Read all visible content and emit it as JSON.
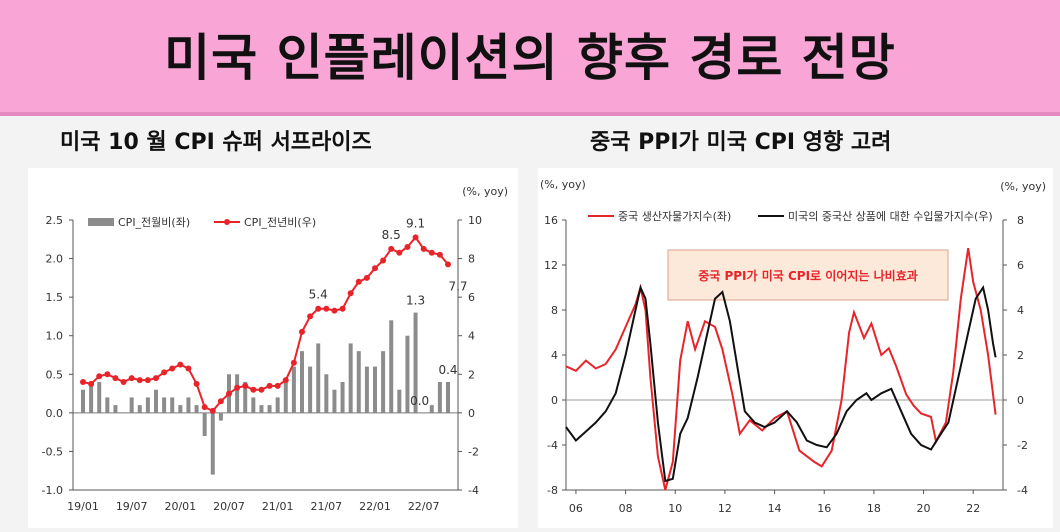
{
  "page": {
    "title": "미국 인플레이션의 향후 경로 전망"
  },
  "left_panel": {
    "title": "미국 10 월 CPI 슈퍼 서프라이즈"
  },
  "right_panel": {
    "title": "중국 PPI가  미국 CPI 영향 고려"
  },
  "chart_data": [
    {
      "type": "bar+line",
      "unit_right": "(%, yoy)",
      "y_left": {
        "lim": [
          -1.0,
          2.5
        ],
        "ticks": [
          "2.5",
          "2.0",
          "1.5",
          "1.0",
          "0.5",
          "0.0",
          "-0.5",
          "-1.0"
        ]
      },
      "y_right": {
        "lim": [
          -4,
          10
        ],
        "ticks": [
          "10",
          "8",
          "6",
          "4",
          "2",
          "0",
          "-2",
          "-4"
        ]
      },
      "x_ticks": [
        "19/01",
        "19/07",
        "20/01",
        "20/07",
        "21/01",
        "21/07",
        "22/01",
        "22/07"
      ],
      "legend": {
        "bar": "CPI_전월비(좌)",
        "line": "CPI_전년비(우)"
      },
      "bar_series": {
        "name": "CPI_전월비(좌)",
        "values": [
          0.3,
          0.4,
          0.4,
          0.2,
          0.1,
          0.0,
          0.2,
          0.1,
          0.2,
          0.3,
          0.2,
          0.2,
          0.1,
          0.2,
          0.1,
          -0.3,
          -0.8,
          -0.1,
          0.5,
          0.5,
          0.4,
          0.2,
          0.1,
          0.1,
          0.2,
          0.4,
          0.6,
          0.8,
          0.6,
          0.9,
          0.5,
          0.3,
          0.4,
          0.9,
          0.8,
          0.6,
          0.6,
          0.8,
          1.2,
          0.3,
          1.0,
          1.3,
          0.0,
          0.1,
          0.4,
          0.4
        ]
      },
      "line_series": {
        "name": "CPI_전년비(우)",
        "values": [
          1.6,
          1.5,
          1.9,
          2.0,
          1.8,
          1.6,
          1.8,
          1.7,
          1.7,
          1.8,
          2.1,
          2.3,
          2.5,
          2.3,
          1.5,
          0.3,
          0.1,
          0.6,
          1.0,
          1.3,
          1.4,
          1.2,
          1.2,
          1.4,
          1.4,
          1.7,
          2.6,
          4.2,
          5.0,
          5.4,
          5.4,
          5.3,
          5.4,
          6.2,
          6.8,
          7.0,
          7.5,
          7.9,
          8.5,
          8.3,
          8.6,
          9.1,
          8.5,
          8.3,
          8.2,
          7.7
        ]
      },
      "annotations": [
        {
          "label": "5.4",
          "series": "line",
          "index": 29
        },
        {
          "label": "8.5",
          "series": "line",
          "index": 38
        },
        {
          "label": "9.1",
          "series": "line",
          "index": 41
        },
        {
          "label": "7.7",
          "series": "line",
          "index": 45
        },
        {
          "label": "1.3",
          "series": "bar",
          "index": 41
        },
        {
          "label": "0.0",
          "series": "bar",
          "index": 42
        },
        {
          "label": "0.4",
          "series": "bar",
          "index": 45
        }
      ]
    },
    {
      "type": "line",
      "unit_left": "(%, yoy)",
      "unit_right": "(%, yoy)",
      "y_left": {
        "lim": [
          -8,
          16
        ],
        "ticks": [
          "16",
          "12",
          "8",
          "4",
          "0",
          "-4",
          "-8"
        ]
      },
      "y_right": {
        "lim": [
          -4,
          8
        ],
        "ticks": [
          "8",
          "6",
          "4",
          "2",
          "0",
          "-2",
          "-4"
        ]
      },
      "x_ticks": [
        "06",
        "08",
        "10",
        "12",
        "14",
        "16",
        "18",
        "20",
        "22"
      ],
      "x_range": [
        2005.6,
        2023.2
      ],
      "callout": "중국 PPI가 미국 CPI로 이어지는 나비효과",
      "series": [
        {
          "name": "중국 생산자물가지수(좌)",
          "color": "#e8242b",
          "axis": "left",
          "points": [
            [
              2005.6,
              3.0
            ],
            [
              2006.0,
              2.6
            ],
            [
              2006.4,
              3.5
            ],
            [
              2006.8,
              2.8
            ],
            [
              2007.2,
              3.2
            ],
            [
              2007.6,
              4.5
            ],
            [
              2008.0,
              6.5
            ],
            [
              2008.4,
              8.5
            ],
            [
              2008.6,
              10.0
            ],
            [
              2008.8,
              8.0
            ],
            [
              2009.0,
              2.0
            ],
            [
              2009.3,
              -5.0
            ],
            [
              2009.6,
              -8.0
            ],
            [
              2009.9,
              -5.5
            ],
            [
              2010.2,
              3.5
            ],
            [
              2010.5,
              7.0
            ],
            [
              2010.8,
              4.5
            ],
            [
              2011.2,
              7.0
            ],
            [
              2011.6,
              6.5
            ],
            [
              2011.9,
              4.5
            ],
            [
              2012.3,
              0.5
            ],
            [
              2012.6,
              -3.0
            ],
            [
              2013.0,
              -1.8
            ],
            [
              2013.5,
              -2.7
            ],
            [
              2014.0,
              -1.6
            ],
            [
              2014.5,
              -1.0
            ],
            [
              2015.0,
              -4.5
            ],
            [
              2015.6,
              -5.5
            ],
            [
              2015.9,
              -5.9
            ],
            [
              2016.3,
              -4.5
            ],
            [
              2016.7,
              0.0
            ],
            [
              2017.0,
              6.0
            ],
            [
              2017.2,
              7.8
            ],
            [
              2017.6,
              5.5
            ],
            [
              2017.9,
              6.8
            ],
            [
              2018.3,
              4.0
            ],
            [
              2018.6,
              4.6
            ],
            [
              2018.9,
              3.0
            ],
            [
              2019.3,
              0.5
            ],
            [
              2019.6,
              -0.5
            ],
            [
              2019.9,
              -1.2
            ],
            [
              2020.3,
              -1.5
            ],
            [
              2020.5,
              -3.7
            ],
            [
              2020.9,
              -2.0
            ],
            [
              2021.2,
              2.5
            ],
            [
              2021.5,
              9.0
            ],
            [
              2021.8,
              13.5
            ],
            [
              2022.0,
              10.5
            ],
            [
              2022.3,
              8.0
            ],
            [
              2022.6,
              4.0
            ],
            [
              2022.9,
              -1.3
            ]
          ]
        },
        {
          "name": "미국의 중국산 상품에 대한 수입물가지수(우)",
          "color": "#111111",
          "axis": "right",
          "points": [
            [
              2005.6,
              -1.2
            ],
            [
              2006.0,
              -1.8
            ],
            [
              2006.4,
              -1.4
            ],
            [
              2006.8,
              -1.0
            ],
            [
              2007.2,
              -0.5
            ],
            [
              2007.6,
              0.3
            ],
            [
              2008.0,
              2.0
            ],
            [
              2008.4,
              4.0
            ],
            [
              2008.6,
              5.0
            ],
            [
              2008.8,
              4.5
            ],
            [
              2009.0,
              2.5
            ],
            [
              2009.3,
              -1.0
            ],
            [
              2009.6,
              -3.6
            ],
            [
              2009.9,
              -3.5
            ],
            [
              2010.2,
              -1.5
            ],
            [
              2010.5,
              -0.8
            ],
            [
              2010.9,
              1.0
            ],
            [
              2011.3,
              3.0
            ],
            [
              2011.6,
              4.5
            ],
            [
              2011.9,
              4.8
            ],
            [
              2012.2,
              3.5
            ],
            [
              2012.5,
              1.5
            ],
            [
              2012.8,
              -0.5
            ],
            [
              2013.2,
              -1.0
            ],
            [
              2013.6,
              -1.2
            ],
            [
              2014.0,
              -1.0
            ],
            [
              2014.5,
              -0.5
            ],
            [
              2014.9,
              -1.0
            ],
            [
              2015.3,
              -1.8
            ],
            [
              2015.7,
              -2.0
            ],
            [
              2016.1,
              -2.1
            ],
            [
              2016.5,
              -1.5
            ],
            [
              2016.9,
              -0.5
            ],
            [
              2017.3,
              0.0
            ],
            [
              2017.7,
              0.3
            ],
            [
              2017.9,
              0.0
            ],
            [
              2018.3,
              0.3
            ],
            [
              2018.7,
              0.5
            ],
            [
              2019.1,
              -0.5
            ],
            [
              2019.5,
              -1.5
            ],
            [
              2019.9,
              -2.0
            ],
            [
              2020.3,
              -2.2
            ],
            [
              2020.7,
              -1.5
            ],
            [
              2021.0,
              -1.0
            ],
            [
              2021.4,
              1.0
            ],
            [
              2021.8,
              3.0
            ],
            [
              2022.1,
              4.5
            ],
            [
              2022.4,
              5.0
            ],
            [
              2022.6,
              4.0
            ],
            [
              2022.8,
              2.5
            ],
            [
              2022.9,
              1.9
            ]
          ]
        }
      ]
    }
  ]
}
